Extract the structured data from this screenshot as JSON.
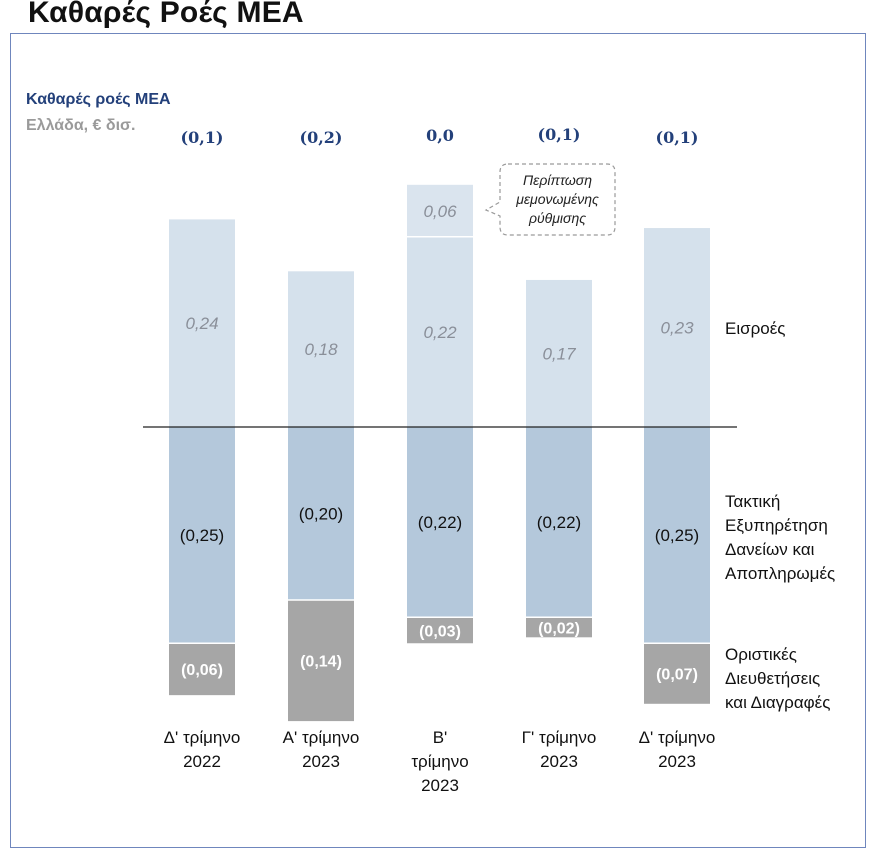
{
  "page": {
    "title": "Καθαρές Ροές ΜΕΑ"
  },
  "chart_data": {
    "type": "bar",
    "title": "Καθαρές ροές ΜΕΑ",
    "subtitle": "Ελλάδα, € δισ.",
    "categories": [
      [
        "Δ' τρίμηνο",
        "2022"
      ],
      [
        "Α' τρίμηνο",
        "2023"
      ],
      [
        "Β'",
        "τρίμηνο",
        "2023"
      ],
      [
        "Γ' τρίμηνο",
        "2023"
      ],
      [
        "Δ' τρίμηνο",
        "2023"
      ]
    ],
    "net_flows": [
      "(0,1)",
      "(0,2)",
      "0,0",
      "(0,1)",
      "(0,1)"
    ],
    "series": [
      {
        "name": "Εισροές",
        "values": [
          0.24,
          0.18,
          0.22,
          0.17,
          0.23
        ],
        "labels": [
          "0,24",
          "0,18",
          "0,22",
          "0,17",
          "0,23"
        ],
        "color": "#d5e1ec"
      },
      {
        "name": "Περίπτωση μεμονωμένης ρύθμισης",
        "values": [
          0,
          0,
          0.06,
          0,
          0
        ],
        "labels": [
          "",
          "",
          "0,06",
          "",
          ""
        ],
        "color": "#dae4ee"
      },
      {
        "name": "Τακτική Εξυπηρέτηση Δανείων και Αποπληρωμές",
        "values": [
          -0.25,
          -0.2,
          -0.22,
          -0.22,
          -0.25
        ],
        "labels": [
          "(0,25)",
          "(0,20)",
          "(0,22)",
          "(0,22)",
          "(0,25)"
        ],
        "color": "#b4c8db"
      },
      {
        "name": "Οριστικές Διευθετήσεις και Διαγραφές",
        "values": [
          -0.06,
          -0.14,
          -0.03,
          -0.02,
          -0.07
        ],
        "labels": [
          "(0,06)",
          "(0,14)",
          "(0,03)",
          "(0,02)",
          "(0,07)"
        ],
        "color": "#a6a6a6"
      }
    ],
    "legend": [
      [
        "Εισροές"
      ],
      [
        "Τακτική",
        "Εξυπηρέτηση",
        "Δανείων και",
        "Αποπληρωμές"
      ],
      [
        "Οριστικές",
        "Διευθετήσεις",
        "και Διαγραφές"
      ]
    ],
    "callout": [
      "Περίπτωση",
      "μεμονωμένης",
      "ρύθμισης"
    ],
    "zero_line_color": "#222222",
    "net_label_color": "#23407a"
  }
}
